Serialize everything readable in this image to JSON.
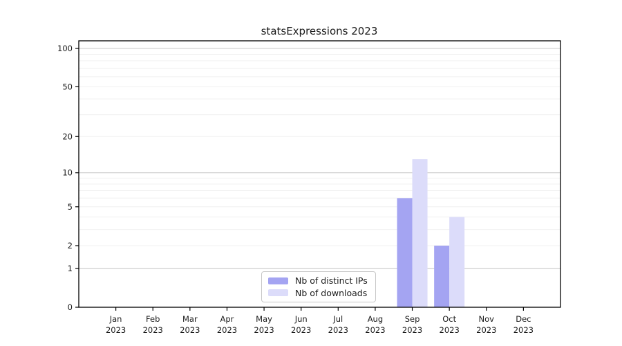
{
  "chart_data": {
    "type": "bar",
    "title": "statsExpressions 2023",
    "categories": [
      "Jan 2023",
      "Feb 2023",
      "Mar 2023",
      "Apr 2023",
      "May 2023",
      "Jun 2023",
      "Jul 2023",
      "Aug 2023",
      "Sep 2023",
      "Oct 2023",
      "Nov 2023",
      "Dec 2023"
    ],
    "month_labels": [
      "Jan",
      "Feb",
      "Mar",
      "Apr",
      "May",
      "Jun",
      "Jul",
      "Aug",
      "Sep",
      "Oct",
      "Nov",
      "Dec"
    ],
    "year_label": "2023",
    "series": [
      {
        "name": "Nb of distinct IPs",
        "color": "#a4a4f2",
        "values": [
          0,
          0,
          0,
          0,
          0,
          0,
          0,
          0,
          6,
          2,
          0,
          0
        ]
      },
      {
        "name": "Nb of downloads",
        "color": "#dcdcfa",
        "values": [
          0,
          0,
          0,
          0,
          0,
          0,
          0,
          0,
          13,
          4,
          0,
          0
        ]
      }
    ],
    "y_axis": {
      "scale": "log1p",
      "ticks": [
        0,
        1,
        2,
        5,
        10,
        20,
        50,
        100
      ],
      "major_gridlines": [
        1,
        10,
        100
      ],
      "minor_gridlines": [
        2,
        3,
        4,
        5,
        6,
        7,
        8,
        9,
        20,
        30,
        40,
        50,
        60,
        70,
        80,
        90
      ],
      "range_max": 114
    },
    "legend": {
      "position": "lower center",
      "entries": [
        "Nb of distinct IPs",
        "Nb of downloads"
      ]
    },
    "grid": true,
    "colors": {
      "major_grid": "#c9c9c9",
      "minor_grid": "#f0f0f0",
      "spine": "#000000",
      "text": "#1a1a1a",
      "background": "#ffffff"
    }
  }
}
